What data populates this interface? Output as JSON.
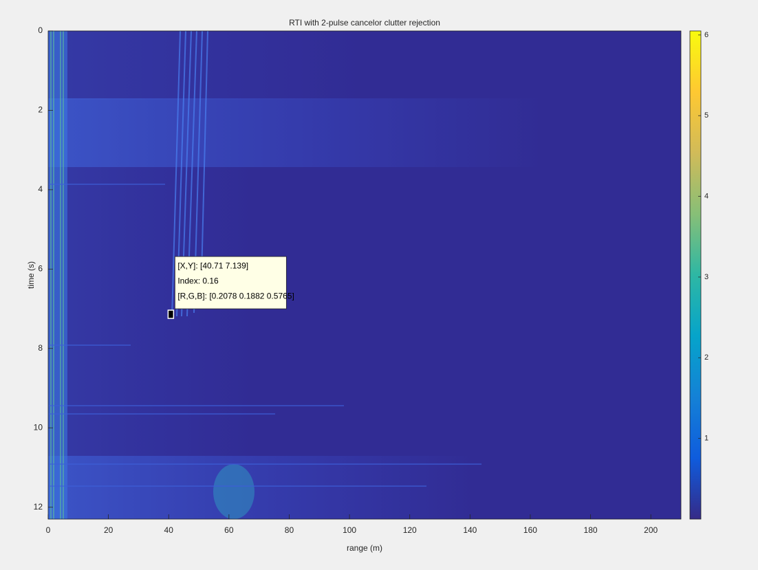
{
  "chart_data": {
    "type": "heatmap",
    "title": "RTI with 2-pulse cancelor clutter rejection",
    "x_label": "range (m)",
    "y_label": "time (s)",
    "xlim": [
      0,
      210
    ],
    "xticks": [
      0,
      20,
      40,
      60,
      80,
      100,
      120,
      140,
      160,
      180,
      200
    ],
    "ylim": [
      0,
      12.3
    ],
    "yticks": [
      0,
      2,
      4,
      6,
      8,
      10,
      12
    ],
    "y_reversed": true,
    "colorbar": {
      "clim": [
        0,
        6.05
      ],
      "ticks": [
        1,
        2,
        3,
        4,
        5,
        6
      ],
      "colormap": [
        "#352a87",
        "#0f5cdd",
        "#1481d6",
        "#06a4ca",
        "#2eb7a4",
        "#87bf77",
        "#d1bb59",
        "#fec832",
        "#f9fb0e"
      ]
    },
    "datatip": {
      "x": 40.71,
      "y": 7.139,
      "lines": [
        "[X,Y]: [40.71 7.139]",
        "Index: 0.16",
        "[R,G,B]: [0.2078 0.1882 0.5765]"
      ]
    },
    "grid": false
  }
}
